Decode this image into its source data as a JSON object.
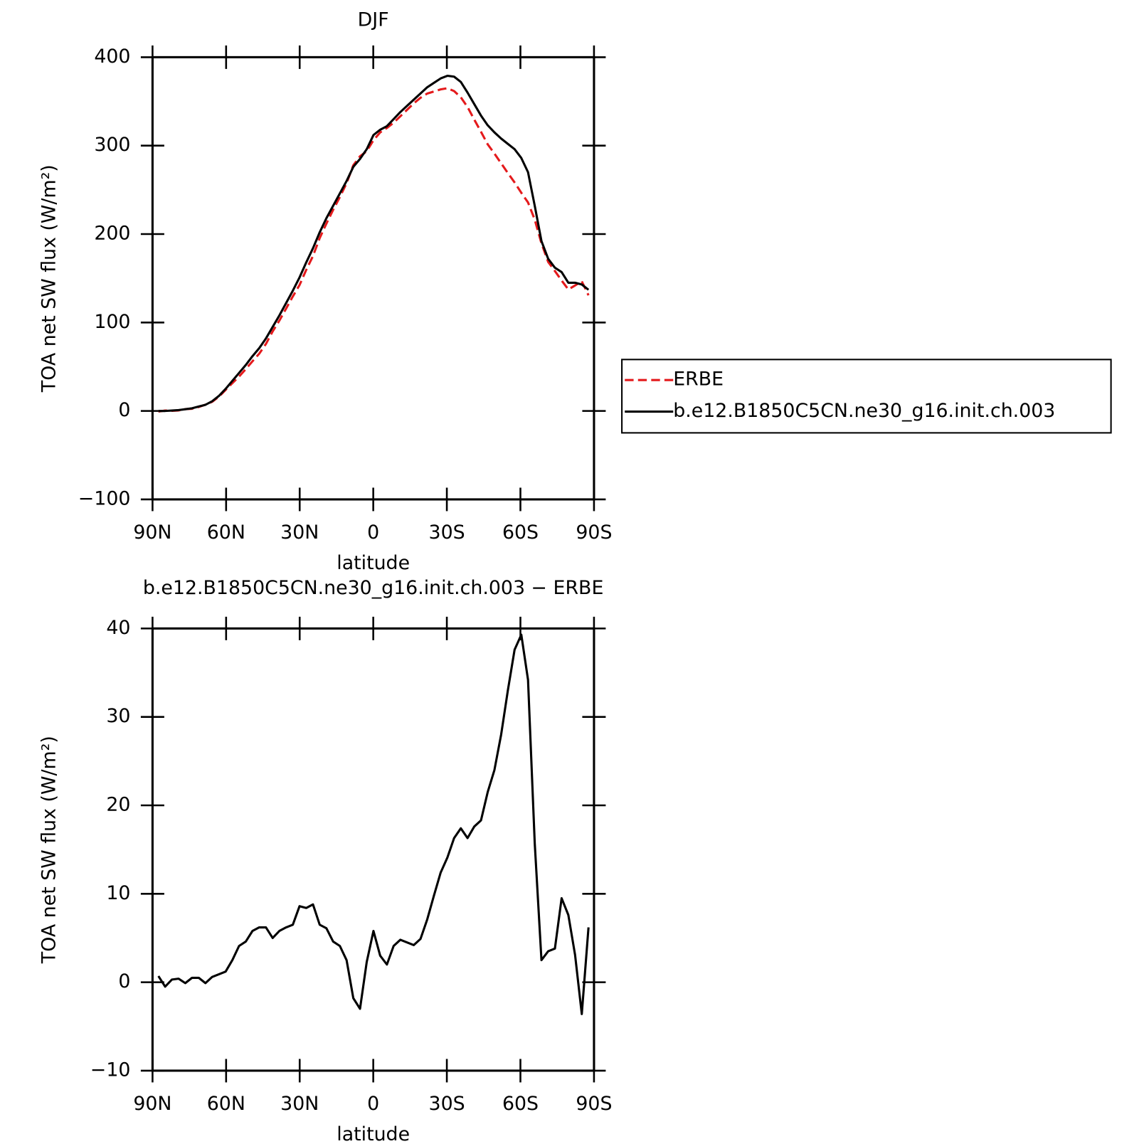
{
  "chart_data": [
    {
      "type": "line",
      "title": "DJF",
      "xlabel": "latitude",
      "ylabel": "TOA net SW flux (W/m²)",
      "x": [
        87.6,
        84.86,
        82.12,
        79.38,
        76.64,
        73.9,
        71.16,
        68.42,
        65.68,
        62.94,
        60.2,
        57.46,
        54.72,
        51.98,
        49.24,
        46.5,
        43.76,
        41.02,
        38.28,
        35.54,
        32.8,
        30.06,
        27.32,
        24.58,
        21.84,
        19.1,
        16.36,
        13.62,
        10.88,
        8.14,
        5.4,
        2.66,
        -0.08,
        -2.82,
        -5.56,
        -8.3,
        -11.04,
        -13.78,
        -16.52,
        -19.26,
        -22,
        -24.74,
        -27.48,
        -30.22,
        -32.96,
        -35.7,
        -38.44,
        -41.18,
        -43.92,
        -46.66,
        -49.4,
        -52.14,
        -54.88,
        -57.62,
        -60.36,
        -63.1,
        -65.84,
        -68.58,
        -71.32,
        -74.06,
        -76.8,
        -79.54,
        -82.28,
        -85.02,
        -87.76
      ],
      "series": [
        {
          "name": "ERBE",
          "color": "#e41a1c",
          "style": "dashed",
          "values": [
            -0.7,
            0.5,
            0.2,
            0.6,
            2.1,
            2.5,
            4.5,
            7.1,
            10.4,
            16.1,
            23.8,
            31.5,
            38.9,
            47.4,
            56.2,
            64.8,
            75.8,
            90,
            102.2,
            115.8,
            129.5,
            142.4,
            159.6,
            175.2,
            195.5,
            211.9,
            227.4,
            241.9,
            257.5,
            277.8,
            288,
            293.7,
            306.2,
            315,
            320,
            325.9,
            333.2,
            340.5,
            347.8,
            354.1,
            358.9,
            361.2,
            363.6,
            364.9,
            361.7,
            354.6,
            343.7,
            329.4,
            315.7,
            301.5,
            291,
            280,
            269,
            258.4,
            246.7,
            235.8,
            216.3,
            189.5,
            168.5,
            158.2,
            147.5,
            137.4,
            141.9,
            146.6,
            130.8
          ]
        },
        {
          "name": "b.e12.B1850C5CN.ne30_g16.init.ch.003",
          "color": "#000000",
          "style": "solid",
          "values": [
            0,
            0,
            0.5,
            1,
            2,
            3,
            5,
            7,
            11,
            17,
            25,
            34,
            43,
            52,
            62,
            71,
            82,
            95,
            108,
            122,
            136,
            151,
            168,
            184,
            202,
            218,
            232,
            246,
            260,
            276,
            285,
            296,
            312,
            318,
            322,
            330,
            338,
            345,
            352,
            359,
            366,
            371,
            376,
            379,
            378,
            372,
            360,
            347,
            334,
            323,
            315,
            308,
            302,
            296,
            286,
            270,
            232,
            192,
            172,
            162,
            157,
            145,
            145,
            143,
            137
          ]
        }
      ],
      "xlim": [
        90,
        -90
      ],
      "xticks": [
        {
          "value": 90,
          "label": "90N"
        },
        {
          "value": 60,
          "label": "60N"
        },
        {
          "value": 30,
          "label": "30N"
        },
        0,
        {
          "value": -30,
          "label": "30S"
        },
        {
          "value": -60,
          "label": "60S"
        },
        {
          "value": -90,
          "label": "90S"
        }
      ],
      "ylim": [
        -100,
        400
      ],
      "yticks": [
        {
          "value": -100,
          "label": "−100"
        },
        0,
        100,
        200,
        300,
        400
      ],
      "legend": "right"
    },
    {
      "type": "line",
      "title": "b.e12.B1850C5CN.ne30_g16.init.ch.003 − ERBE",
      "xlabel": "latitude",
      "ylabel": "TOA net SW flux (W/m²)",
      "x": [
        87.6,
        84.86,
        82.12,
        79.38,
        76.64,
        73.9,
        71.16,
        68.42,
        65.68,
        62.94,
        60.2,
        57.46,
        54.72,
        51.98,
        49.24,
        46.5,
        43.76,
        41.02,
        38.28,
        35.54,
        32.8,
        30.06,
        27.32,
        24.58,
        21.84,
        19.1,
        16.36,
        13.62,
        10.88,
        8.14,
        5.4,
        2.66,
        -0.08,
        -2.82,
        -5.56,
        -8.3,
        -11.04,
        -13.78,
        -16.52,
        -19.26,
        -22,
        -24.74,
        -27.48,
        -30.22,
        -32.96,
        -35.7,
        -38.44,
        -41.18,
        -43.92,
        -46.66,
        -49.4,
        -52.14,
        -54.88,
        -57.62,
        -60.36,
        -63.1,
        -65.84,
        -68.58,
        -71.32,
        -74.06,
        -76.8,
        -79.54,
        -82.28,
        -85.02,
        -87.76
      ],
      "series": [
        {
          "color": "#000000",
          "style": "solid",
          "values": [
            0.7,
            -0.5,
            0.3,
            0.4,
            -0.1,
            0.5,
            0.5,
            -0.1,
            0.6,
            0.9,
            1.2,
            2.5,
            4.1,
            4.6,
            5.8,
            6.2,
            6.2,
            5.0,
            5.8,
            6.2,
            6.5,
            8.6,
            8.4,
            8.8,
            6.5,
            6.1,
            4.6,
            4.1,
            2.5,
            -1.8,
            -3.0,
            2.3,
            5.8,
            3.0,
            2.0,
            4.1,
            4.8,
            4.5,
            4.2,
            4.9,
            7.1,
            9.8,
            12.4,
            14.1,
            16.3,
            17.4,
            16.3,
            17.6,
            18.3,
            21.5,
            24.0,
            28.0,
            33,
            37.6,
            39.3,
            34.2,
            15.7,
            2.5,
            3.5,
            3.8,
            9.5,
            7.6,
            3.1,
            -3.6,
            6.2
          ]
        }
      ],
      "xlim": [
        90,
        -90
      ],
      "xticks": [
        {
          "value": 90,
          "label": "90N"
        },
        {
          "value": 60,
          "label": "60N"
        },
        {
          "value": 30,
          "label": "30N"
        },
        0,
        {
          "value": -30,
          "label": "30S"
        },
        {
          "value": -60,
          "label": "60S"
        },
        {
          "value": -90,
          "label": "90S"
        }
      ],
      "ylim": [
        -10,
        40
      ],
      "yticks": [
        {
          "value": -10,
          "label": "−10"
        },
        0,
        10,
        20,
        30,
        40
      ]
    }
  ]
}
